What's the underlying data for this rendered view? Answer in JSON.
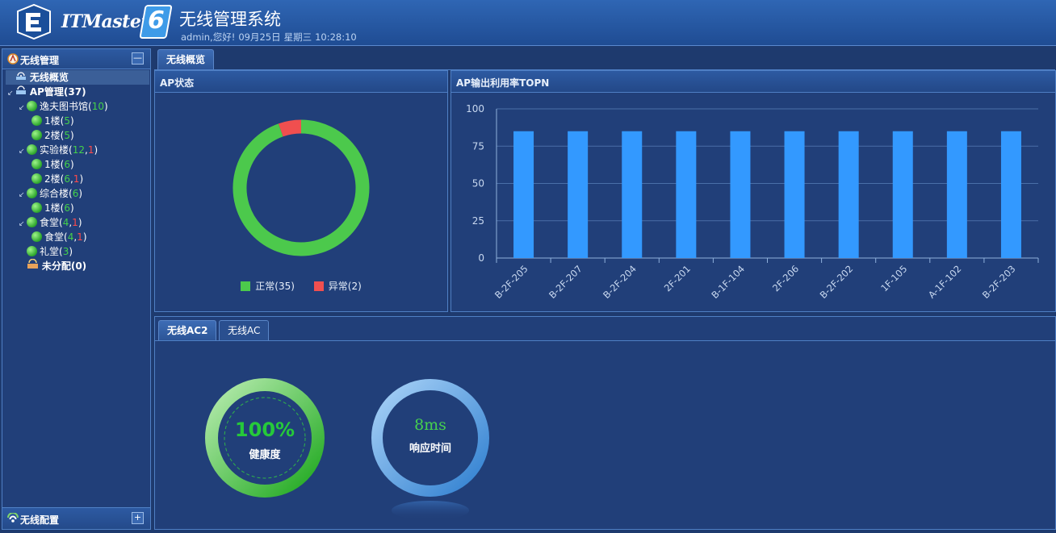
{
  "header": {
    "brand": "ITMaster",
    "brand_version": "6",
    "title": "无线管理系统",
    "user": "admin,您好!",
    "date": "09月25日",
    "weekday": "星期三",
    "time": "10:28:10"
  },
  "sidebar": {
    "title": "无线管理",
    "collapse_symbol": "—",
    "footer_title": "无线配置",
    "expand_symbol": "+",
    "tree": [
      {
        "label": "无线概览",
        "level": 0,
        "icon": "overview-icon",
        "selected": true
      },
      {
        "label": "AP管理(37)",
        "level": 0,
        "icon": "ap-manage-icon",
        "bold": true
      },
      {
        "label": "逸夫图书馆",
        "level": 1,
        "counts": [
          {
            "v": "10",
            "c": "g"
          }
        ]
      },
      {
        "label": "1楼",
        "level": 2,
        "counts": [
          {
            "v": "5",
            "c": "g"
          }
        ]
      },
      {
        "label": "2楼",
        "level": 2,
        "counts": [
          {
            "v": "5",
            "c": "g"
          }
        ]
      },
      {
        "label": "实验楼",
        "level": 1,
        "counts": [
          {
            "v": "12",
            "c": "g"
          },
          {
            "v": "1",
            "c": "r"
          }
        ]
      },
      {
        "label": "1楼",
        "level": 2,
        "counts": [
          {
            "v": "6",
            "c": "g"
          }
        ]
      },
      {
        "label": "2楼",
        "level": 2,
        "counts": [
          {
            "v": "6",
            "c": "g"
          },
          {
            "v": "1",
            "c": "r"
          }
        ]
      },
      {
        "label": "综合楼",
        "level": 1,
        "counts": [
          {
            "v": "6",
            "c": "g"
          }
        ]
      },
      {
        "label": "1楼",
        "level": 2,
        "counts": [
          {
            "v": "6",
            "c": "g"
          }
        ]
      },
      {
        "label": "食堂",
        "level": 1,
        "counts": [
          {
            "v": "4",
            "c": "g"
          },
          {
            "v": "1",
            "c": "r"
          }
        ]
      },
      {
        "label": "食堂",
        "level": 2,
        "counts": [
          {
            "v": "4",
            "c": "g"
          },
          {
            "v": "1",
            "c": "r"
          }
        ]
      },
      {
        "label": "礼堂",
        "level": 1,
        "counts": [
          {
            "v": "3",
            "c": "g"
          }
        ],
        "noexp": true
      },
      {
        "label": "未分配(0)",
        "level": 1,
        "icon": "unassigned-icon",
        "bold": true,
        "noexp": true
      }
    ]
  },
  "main_tabs": [
    {
      "label": "无线概览",
      "active": true
    }
  ],
  "ap_status": {
    "title": "AP状态",
    "legend": [
      {
        "name": "正常",
        "count": "35",
        "color": "#4cc94c"
      },
      {
        "name": "异常",
        "count": "2",
        "color": "#f04f4f"
      }
    ]
  },
  "ap_topn": {
    "title": "AP输出利用率TOPN"
  },
  "chart_data": {
    "type": "bar",
    "title": "",
    "categories": [
      "B-2F-205",
      "B-2F-207",
      "B-2F-204",
      "2F-201",
      "B-1F-104",
      "2F-206",
      "B-2F-202",
      "1F-105",
      "A-1F-102",
      "B-2F-203"
    ],
    "values": [
      85,
      85,
      85,
      85,
      85,
      85,
      85,
      85,
      85,
      85
    ],
    "ylim": [
      0,
      100
    ],
    "yticks": [
      "0",
      "25",
      "50",
      "75",
      "100"
    ],
    "grid": true,
    "bar_color": "#3399ff"
  },
  "ac_tabs": [
    {
      "label": "无线AC2",
      "active": true
    },
    {
      "label": "无线AC",
      "active": false
    }
  ],
  "health": {
    "value": "100%",
    "label": "健康度",
    "fraction": 1.0
  },
  "response": {
    "value": "8ms",
    "label": "响应时间"
  }
}
